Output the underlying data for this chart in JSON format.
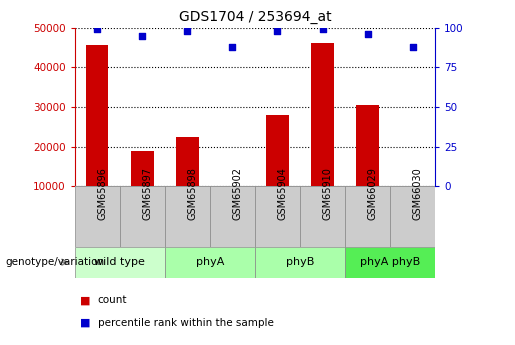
{
  "title": "GDS1704 / 253694_at",
  "samples": [
    "GSM65896",
    "GSM65897",
    "GSM65898",
    "GSM65902",
    "GSM65904",
    "GSM65910",
    "GSM66029",
    "GSM66030"
  ],
  "counts": [
    45500,
    19000,
    22500,
    900,
    28000,
    46000,
    30500,
    900
  ],
  "percentile_ranks": [
    99,
    95,
    98,
    88,
    98,
    99,
    96,
    88
  ],
  "groups": [
    {
      "label": "wild type",
      "span": [
        0,
        2
      ],
      "color": "#ccffcc"
    },
    {
      "label": "phyA",
      "span": [
        2,
        4
      ],
      "color": "#aaffaa"
    },
    {
      "label": "phyB",
      "span": [
        4,
        6
      ],
      "color": "#aaffaa"
    },
    {
      "label": "phyA phyB",
      "span": [
        6,
        8
      ],
      "color": "#55ee55"
    }
  ],
  "bar_color": "#cc0000",
  "dot_color": "#0000cc",
  "left_axis_color": "#cc0000",
  "right_axis_color": "#0000cc",
  "ylim_left": [
    10000,
    50000
  ],
  "ylim_right": [
    0,
    100
  ],
  "yticks_left": [
    10000,
    20000,
    30000,
    40000,
    50000
  ],
  "yticks_right": [
    0,
    25,
    50,
    75,
    100
  ],
  "background_color": "#ffffff",
  "bar_width": 0.5,
  "genotype_label": "genotype/variation",
  "legend_count_label": "count",
  "legend_percentile_label": "percentile rank within the sample",
  "sample_box_color": "#cccccc",
  "grid_linestyle": ":",
  "grid_linewidth": 0.8,
  "grid_color": "#000000"
}
